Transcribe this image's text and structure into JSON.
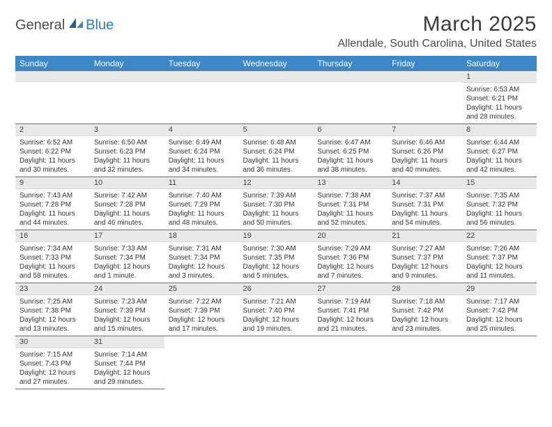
{
  "branding": {
    "general": "General",
    "blue": "Blue"
  },
  "title": "March 2025",
  "location": "Allendale, South Carolina, United States",
  "style": {
    "header_bg": "#3b87c8",
    "header_fg": "#ffffff",
    "daynum_bg": "#e8e8e8",
    "border_color": "#2b7bbf"
  },
  "weekdays": [
    "Sunday",
    "Monday",
    "Tuesday",
    "Wednesday",
    "Thursday",
    "Friday",
    "Saturday"
  ],
  "weeks": [
    [
      null,
      null,
      null,
      null,
      null,
      null,
      {
        "n": "1",
        "sunrise": "6:53 AM",
        "sunset": "6:21 PM",
        "daylight": "11 hours and 28 minutes."
      }
    ],
    [
      {
        "n": "2",
        "sunrise": "6:52 AM",
        "sunset": "6:22 PM",
        "daylight": "11 hours and 30 minutes."
      },
      {
        "n": "3",
        "sunrise": "6:50 AM",
        "sunset": "6:23 PM",
        "daylight": "11 hours and 32 minutes."
      },
      {
        "n": "4",
        "sunrise": "6:49 AM",
        "sunset": "6:24 PM",
        "daylight": "11 hours and 34 minutes."
      },
      {
        "n": "5",
        "sunrise": "6:48 AM",
        "sunset": "6:24 PM",
        "daylight": "11 hours and 36 minutes."
      },
      {
        "n": "6",
        "sunrise": "6:47 AM",
        "sunset": "6:25 PM",
        "daylight": "11 hours and 38 minutes."
      },
      {
        "n": "7",
        "sunrise": "6:46 AM",
        "sunset": "6:26 PM",
        "daylight": "11 hours and 40 minutes."
      },
      {
        "n": "8",
        "sunrise": "6:44 AM",
        "sunset": "6:27 PM",
        "daylight": "11 hours and 42 minutes."
      }
    ],
    [
      {
        "n": "9",
        "sunrise": "7:43 AM",
        "sunset": "7:28 PM",
        "daylight": "11 hours and 44 minutes."
      },
      {
        "n": "10",
        "sunrise": "7:42 AM",
        "sunset": "7:28 PM",
        "daylight": "11 hours and 46 minutes."
      },
      {
        "n": "11",
        "sunrise": "7:40 AM",
        "sunset": "7:29 PM",
        "daylight": "11 hours and 48 minutes."
      },
      {
        "n": "12",
        "sunrise": "7:39 AM",
        "sunset": "7:30 PM",
        "daylight": "11 hours and 50 minutes."
      },
      {
        "n": "13",
        "sunrise": "7:38 AM",
        "sunset": "7:31 PM",
        "daylight": "11 hours and 52 minutes."
      },
      {
        "n": "14",
        "sunrise": "7:37 AM",
        "sunset": "7:31 PM",
        "daylight": "11 hours and 54 minutes."
      },
      {
        "n": "15",
        "sunrise": "7:35 AM",
        "sunset": "7:32 PM",
        "daylight": "11 hours and 56 minutes."
      }
    ],
    [
      {
        "n": "16",
        "sunrise": "7:34 AM",
        "sunset": "7:33 PM",
        "daylight": "11 hours and 58 minutes."
      },
      {
        "n": "17",
        "sunrise": "7:33 AM",
        "sunset": "7:34 PM",
        "daylight": "12 hours and 1 minute."
      },
      {
        "n": "18",
        "sunrise": "7:31 AM",
        "sunset": "7:34 PM",
        "daylight": "12 hours and 3 minutes."
      },
      {
        "n": "19",
        "sunrise": "7:30 AM",
        "sunset": "7:35 PM",
        "daylight": "12 hours and 5 minutes."
      },
      {
        "n": "20",
        "sunrise": "7:29 AM",
        "sunset": "7:36 PM",
        "daylight": "12 hours and 7 minutes."
      },
      {
        "n": "21",
        "sunrise": "7:27 AM",
        "sunset": "7:37 PM",
        "daylight": "12 hours and 9 minutes."
      },
      {
        "n": "22",
        "sunrise": "7:26 AM",
        "sunset": "7:37 PM",
        "daylight": "12 hours and 11 minutes."
      }
    ],
    [
      {
        "n": "23",
        "sunrise": "7:25 AM",
        "sunset": "7:38 PM",
        "daylight": "12 hours and 13 minutes."
      },
      {
        "n": "24",
        "sunrise": "7:23 AM",
        "sunset": "7:39 PM",
        "daylight": "12 hours and 15 minutes."
      },
      {
        "n": "25",
        "sunrise": "7:22 AM",
        "sunset": "7:39 PM",
        "daylight": "12 hours and 17 minutes."
      },
      {
        "n": "26",
        "sunrise": "7:21 AM",
        "sunset": "7:40 PM",
        "daylight": "12 hours and 19 minutes."
      },
      {
        "n": "27",
        "sunrise": "7:19 AM",
        "sunset": "7:41 PM",
        "daylight": "12 hours and 21 minutes."
      },
      {
        "n": "28",
        "sunrise": "7:18 AM",
        "sunset": "7:42 PM",
        "daylight": "12 hours and 23 minutes."
      },
      {
        "n": "29",
        "sunrise": "7:17 AM",
        "sunset": "7:42 PM",
        "daylight": "12 hours and 25 minutes."
      }
    ],
    [
      {
        "n": "30",
        "sunrise": "7:15 AM",
        "sunset": "7:43 PM",
        "daylight": "12 hours and 27 minutes."
      },
      {
        "n": "31",
        "sunrise": "7:14 AM",
        "sunset": "7:44 PM",
        "daylight": "12 hours and 29 minutes."
      },
      null,
      null,
      null,
      null,
      null
    ]
  ],
  "labels": {
    "sunrise": "Sunrise:",
    "sunset": "Sunset:",
    "daylight": "Daylight:"
  }
}
